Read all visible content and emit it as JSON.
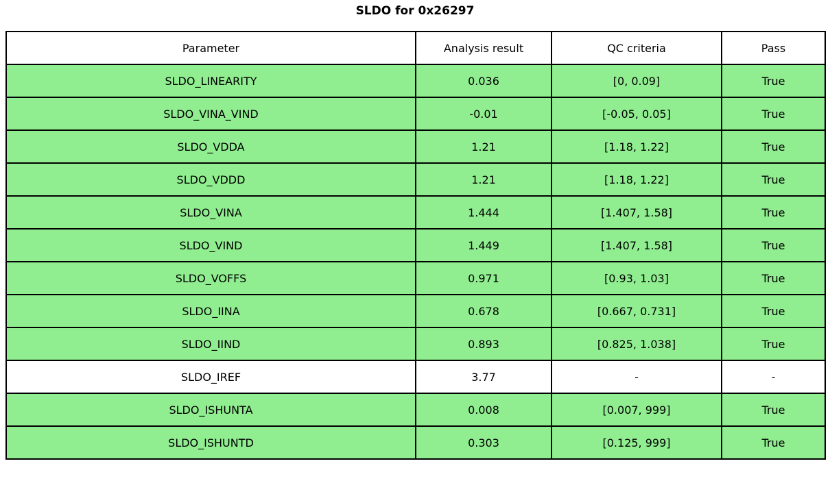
{
  "title": "SLDO for 0x26297",
  "table": {
    "headers": [
      "Parameter",
      "Analysis result",
      "QC criteria",
      "Pass"
    ],
    "rows": [
      {
        "parameter": "SLDO_LINEARITY",
        "result": "0.036",
        "criteria": "[0, 0.09]",
        "pass": "True",
        "highlight": true
      },
      {
        "parameter": "SLDO_VINA_VIND",
        "result": "-0.01",
        "criteria": "[-0.05, 0.05]",
        "pass": "True",
        "highlight": true
      },
      {
        "parameter": "SLDO_VDDA",
        "result": "1.21",
        "criteria": "[1.18, 1.22]",
        "pass": "True",
        "highlight": true
      },
      {
        "parameter": "SLDO_VDDD",
        "result": "1.21",
        "criteria": "[1.18, 1.22]",
        "pass": "True",
        "highlight": true
      },
      {
        "parameter": "SLDO_VINA",
        "result": "1.444",
        "criteria": "[1.407, 1.58]",
        "pass": "True",
        "highlight": true
      },
      {
        "parameter": "SLDO_VIND",
        "result": "1.449",
        "criteria": "[1.407, 1.58]",
        "pass": "True",
        "highlight": true
      },
      {
        "parameter": "SLDO_VOFFS",
        "result": "0.971",
        "criteria": "[0.93, 1.03]",
        "pass": "True",
        "highlight": true
      },
      {
        "parameter": "SLDO_IINA",
        "result": "0.678",
        "criteria": "[0.667, 0.731]",
        "pass": "True",
        "highlight": true
      },
      {
        "parameter": "SLDO_IIND",
        "result": "0.893",
        "criteria": "[0.825, 1.038]",
        "pass": "True",
        "highlight": true
      },
      {
        "parameter": "SLDO_IREF",
        "result": "3.77",
        "criteria": "-",
        "pass": "-",
        "highlight": false
      },
      {
        "parameter": "SLDO_ISHUNTA",
        "result": "0.008",
        "criteria": "[0.007, 999]",
        "pass": "True",
        "highlight": true
      },
      {
        "parameter": "SLDO_ISHUNTD",
        "result": "0.303",
        "criteria": "[0.125, 999]",
        "pass": "True",
        "highlight": true
      }
    ]
  },
  "colors": {
    "pass_green": "#90ee90",
    "border": "#000000",
    "background": "#ffffff"
  }
}
